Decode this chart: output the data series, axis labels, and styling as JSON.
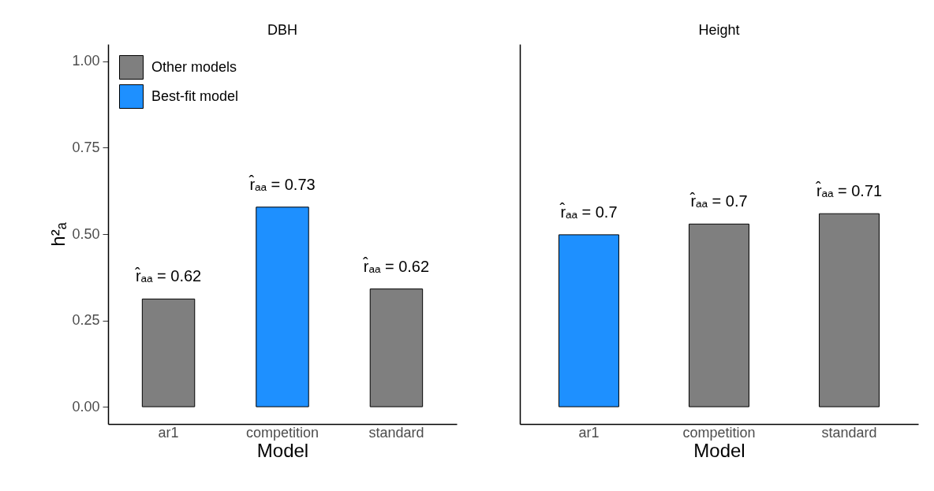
{
  "chart_data": [
    {
      "type": "bar",
      "title": "DBH",
      "xlabel": "Model",
      "ylabel": "h²ₐ",
      "categories": [
        "ar1",
        "competition",
        "standard"
      ],
      "stacked": true,
      "legend": "top left",
      "ylim": [
        -0.05,
        1.05
      ],
      "yticks": [
        {
          "value": 0,
          "label": "0.00"
        },
        {
          "value": 0.25,
          "label": "0.25"
        },
        {
          "value": 0.5,
          "label": "0.50"
        },
        {
          "value": 0.75,
          "label": "0.75"
        },
        {
          "value": 1,
          "label": "1.00"
        }
      ],
      "series": [
        {
          "name": "Other models",
          "color": "#7f7f7f",
          "values": [
            0.312,
            null,
            0.341
          ]
        },
        {
          "name": "Best-fit model",
          "color": "#1e90ff",
          "values": [
            null,
            0.578,
            null
          ]
        }
      ],
      "annotations": [
        {
          "text": "r̂ₐₐ = 0.62",
          "x": "ar1",
          "y": 0.312
        },
        {
          "text": "r̂ₐₐ = 0.73",
          "x": "competition",
          "y": 0.578
        },
        {
          "text": "r̂ₐₐ = 0.62",
          "x": "standard",
          "y": 0.341
        }
      ]
    },
    {
      "type": "bar",
      "title": "Height",
      "xlabel": "Model",
      "categories": [
        "ar1",
        "competition",
        "standard"
      ],
      "stacked": true,
      "tick_labels": "x",
      "ylim": [
        -0.05,
        1.05
      ],
      "series": [
        {
          "color": "#7f7f7f",
          "values": [
            null,
            0.529,
            0.559
          ]
        },
        {
          "color": "#1e90ff",
          "values": [
            0.498,
            null,
            null
          ]
        }
      ],
      "annotations": [
        {
          "text": "r̂ₐₐ = 0.7",
          "x": "ar1",
          "y": 0.498
        },
        {
          "text": "r̂ₐₐ = 0.7",
          "x": "competition",
          "y": 0.529
        },
        {
          "text": "r̂ₐₐ = 0.71",
          "x": "standard",
          "y": 0.559
        }
      ]
    }
  ]
}
